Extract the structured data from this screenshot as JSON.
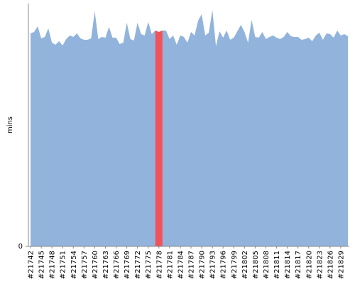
{
  "chart_data": {
    "type": "area",
    "y_label": "mins",
    "categories": [
      "#21742",
      null,
      null,
      "#21745",
      null,
      null,
      "#21748",
      null,
      null,
      "#21751",
      null,
      null,
      "#21754",
      null,
      null,
      "#21757",
      null,
      null,
      "#21760",
      null,
      null,
      "#21763",
      null,
      null,
      "#21766",
      null,
      null,
      "#21769",
      null,
      null,
      "#21772",
      null,
      null,
      "#21775",
      null,
      null,
      "#21778",
      null,
      null,
      "#21781",
      null,
      null,
      "#21784",
      null,
      null,
      "#21787",
      null,
      null,
      "#21790",
      null,
      null,
      "#21793",
      null,
      null,
      "#21796",
      null,
      null,
      "#21799",
      null,
      null,
      "#21802",
      null,
      null,
      "#21805",
      null,
      null,
      "#21808",
      null,
      null,
      "#21811",
      null,
      null,
      "#21814",
      null,
      null,
      "#21817",
      null,
      null,
      "#21820",
      null,
      null,
      "#21823",
      null,
      null,
      "#21826",
      null,
      null,
      "#21829",
      null,
      null
    ],
    "series": [
      {
        "color": "#92b4dc",
        "values": [
          30.0,
          30.2,
          31.0,
          29.3,
          29.5,
          30.7,
          28.7,
          28.4,
          28.9,
          28.3,
          29.2,
          29.7,
          29.5,
          30.0,
          29.3,
          29.1,
          29.1,
          29.3,
          33.1,
          29.2,
          29.5,
          29.4,
          30.9,
          29.4,
          29.4,
          28.5,
          28.7,
          31.5,
          29.2,
          29.0,
          31.5,
          29.9,
          29.7,
          31.6,
          29.9,
          30.4,
          30.2,
          30.4,
          30.4,
          29.2,
          29.7,
          28.4,
          29.7,
          29.5,
          28.7,
          30.2,
          29.7,
          31.8,
          32.7,
          29.7,
          30.1,
          33.3,
          28.2,
          30.3,
          29.4,
          30.4,
          29.1,
          29.4,
          30.3,
          31.2,
          30.2,
          28.7,
          31.9,
          29.5,
          29.4,
          30.2,
          29.2,
          29.5,
          29.7,
          29.4,
          29.2,
          29.5,
          30.2,
          29.6,
          29.5,
          29.5,
          29.1,
          29.2,
          29.4,
          28.9,
          29.7,
          30.1,
          29.1,
          30.0,
          29.9,
          29.4,
          30.4,
          29.7,
          29.9,
          29.6
        ]
      },
      {
        "color": "#f0545a",
        "values": [
          null,
          null,
          null,
          null,
          null,
          null,
          null,
          null,
          null,
          null,
          null,
          null,
          null,
          null,
          null,
          null,
          null,
          null,
          null,
          null,
          null,
          null,
          null,
          null,
          null,
          null,
          null,
          null,
          null,
          null,
          null,
          null,
          null,
          null,
          null,
          30.4,
          30.2,
          30.4,
          null,
          null,
          null,
          null,
          null,
          null,
          null,
          null,
          null,
          null,
          null,
          null,
          null,
          null,
          null,
          null,
          null,
          null,
          null,
          null,
          null,
          null,
          null,
          null,
          null,
          null,
          null,
          null,
          null,
          null,
          null,
          null,
          null,
          null,
          null,
          null,
          null,
          null,
          null,
          null,
          null,
          null,
          null,
          null,
          null,
          null,
          null,
          null,
          null,
          null,
          null,
          null
        ]
      }
    ],
    "ylim": [
      0,
      34.2
    ],
    "yticks": [
      0
    ],
    "grid": false
  }
}
